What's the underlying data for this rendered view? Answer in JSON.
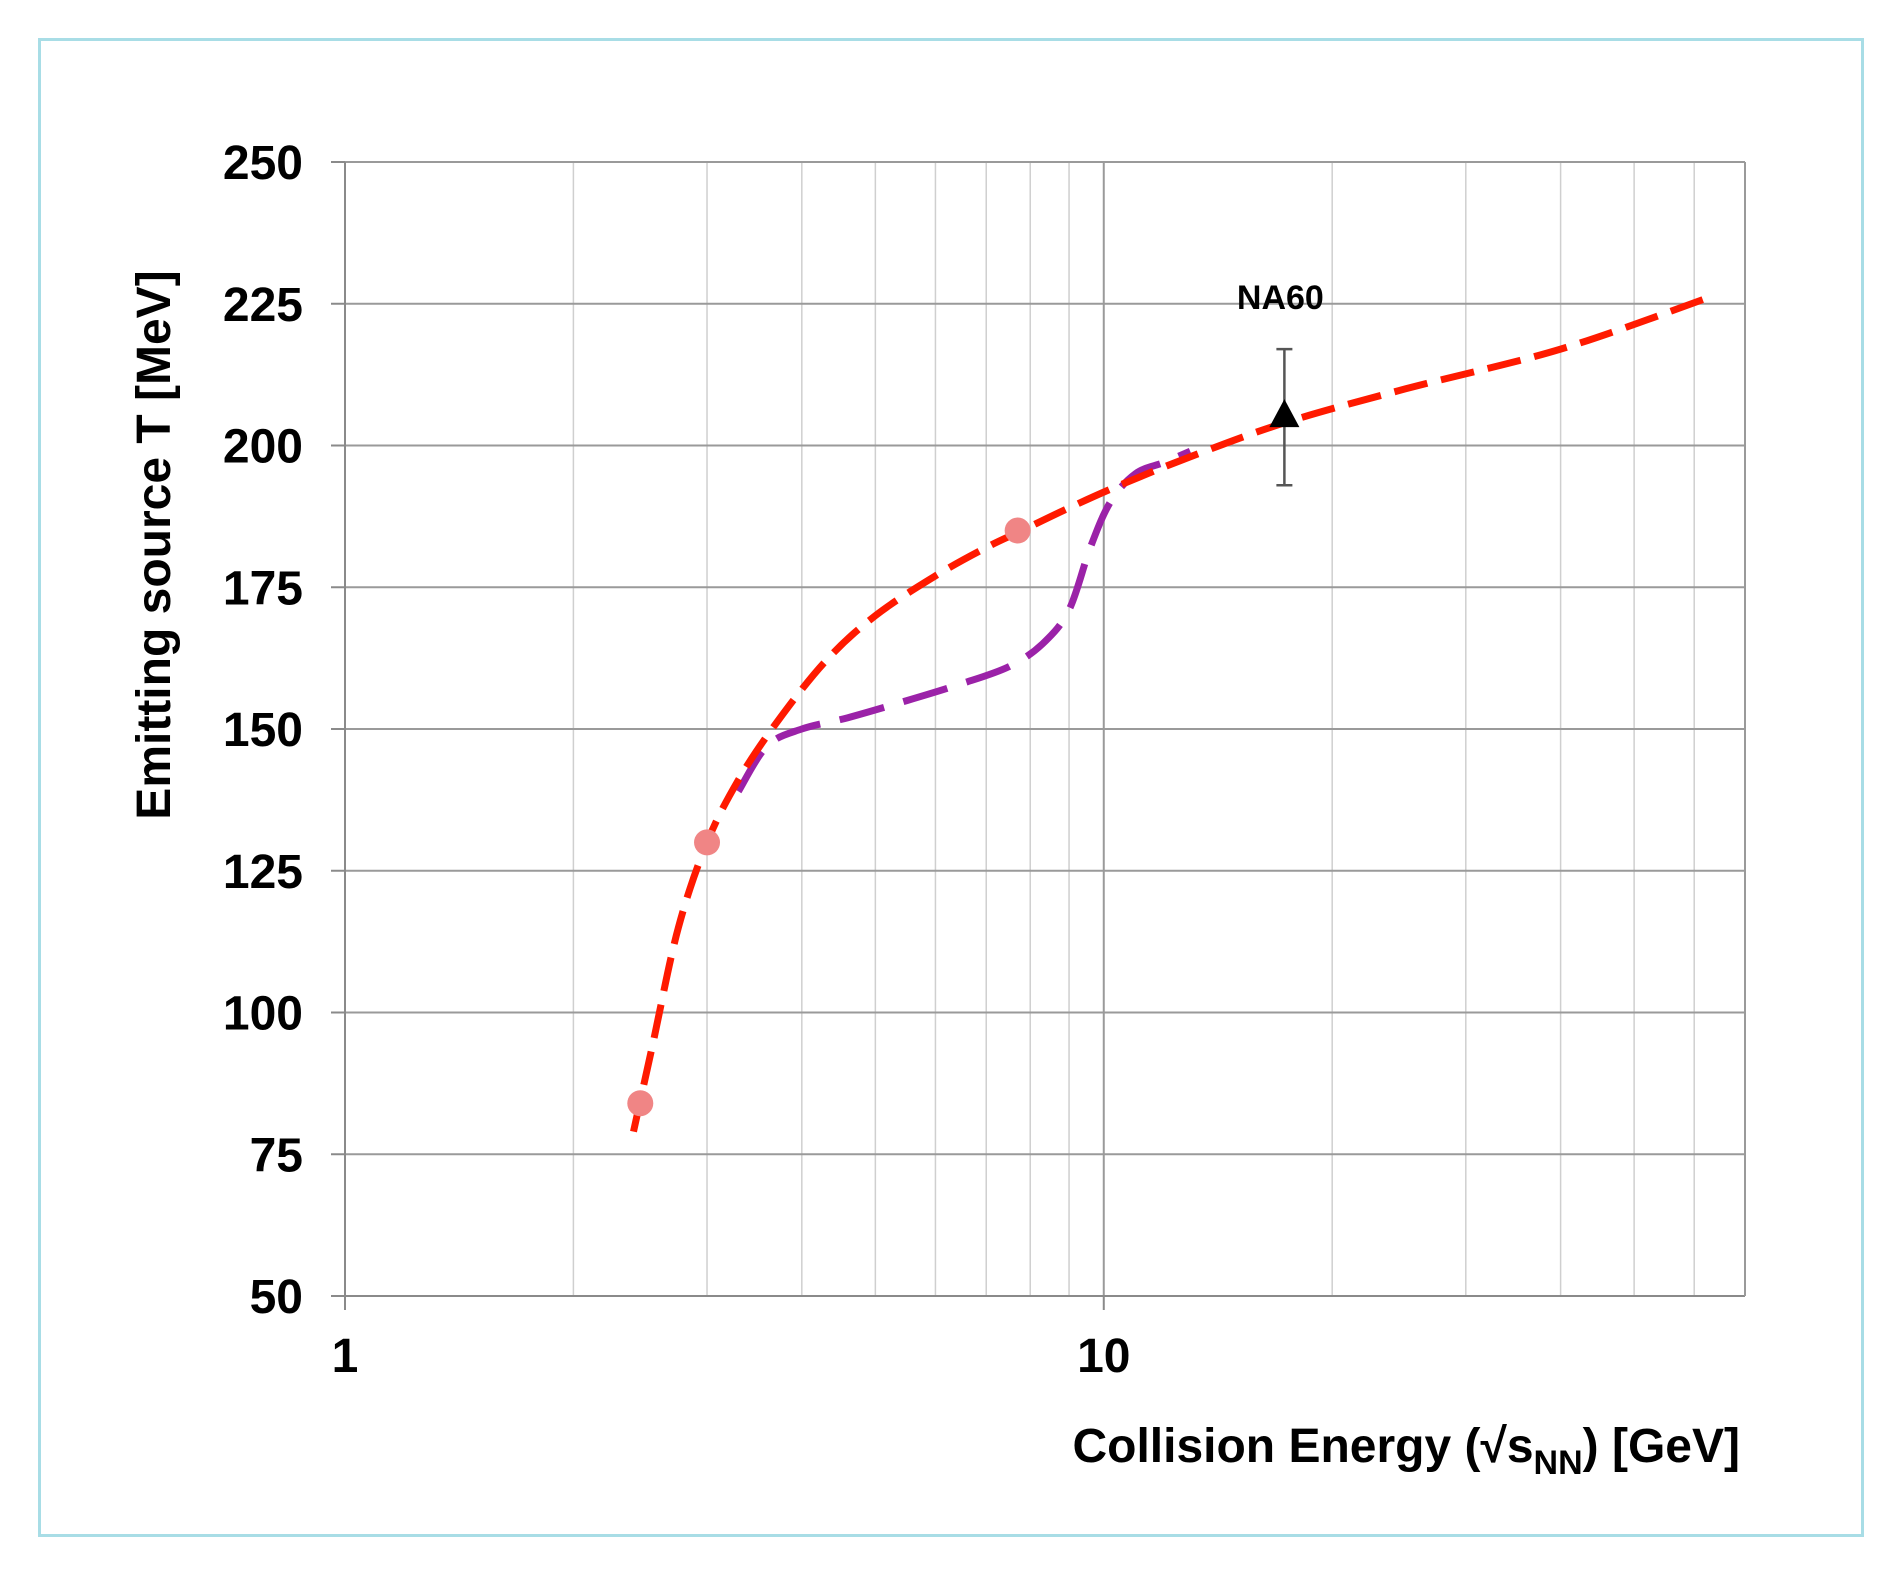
{
  "chart_data": {
    "type": "line",
    "xlabel_main": "Collision Energy (√s",
    "xlabel_sub": "NN",
    "xlabel_tail": ")  [GeV]",
    "ylabel": "Emitting source T  [MeV]",
    "x_scale": "log",
    "xlim": [
      1,
      70
    ],
    "ylim": [
      50,
      250
    ],
    "y_ticks": [
      "50",
      "75",
      "100",
      "125",
      "150",
      "175",
      "200",
      "225",
      "250"
    ],
    "x_tick_labels": [
      {
        "value": 1,
        "label": "1"
      },
      {
        "value": 10,
        "label": "10"
      }
    ],
    "grid": true,
    "series": [
      {
        "style": "dashed",
        "color": "#ff1a00",
        "x": [
          2.4,
          2.55,
          2.75,
          3.0,
          3.3,
          3.7,
          4.3,
          5.0,
          6.0,
          7.0,
          7.8,
          9.0,
          10.5,
          13.0,
          17.3,
          25.0,
          40.0,
          62.4
        ],
        "values": [
          79,
          95,
          115,
          130,
          141,
          151,
          162,
          170,
          177,
          182,
          185,
          189,
          193,
          198,
          204,
          210,
          217,
          226
        ]
      },
      {
        "style": "dashed",
        "color": "#9b22a8",
        "x": [
          3.3,
          3.6,
          4.0,
          4.6,
          5.5,
          6.5,
          7.5,
          8.3,
          9.0,
          9.6,
          10.2,
          11.0,
          12.0,
          13.0
        ],
        "values": [
          139,
          147,
          150,
          152,
          155,
          158,
          161,
          165,
          171,
          182,
          190,
          195,
          197,
          199
        ]
      }
    ],
    "markers": [
      {
        "x": 2.45,
        "y": 84,
        "color": "#f08585"
      },
      {
        "x": 3.0,
        "y": 130,
        "color": "#f08585"
      },
      {
        "x": 7.7,
        "y": 185,
        "color": "#f08585"
      }
    ],
    "data_point": {
      "label": "NA60",
      "x": 17.3,
      "y": 205,
      "y_err": [
        193,
        217
      ],
      "color": "#000000"
    }
  }
}
